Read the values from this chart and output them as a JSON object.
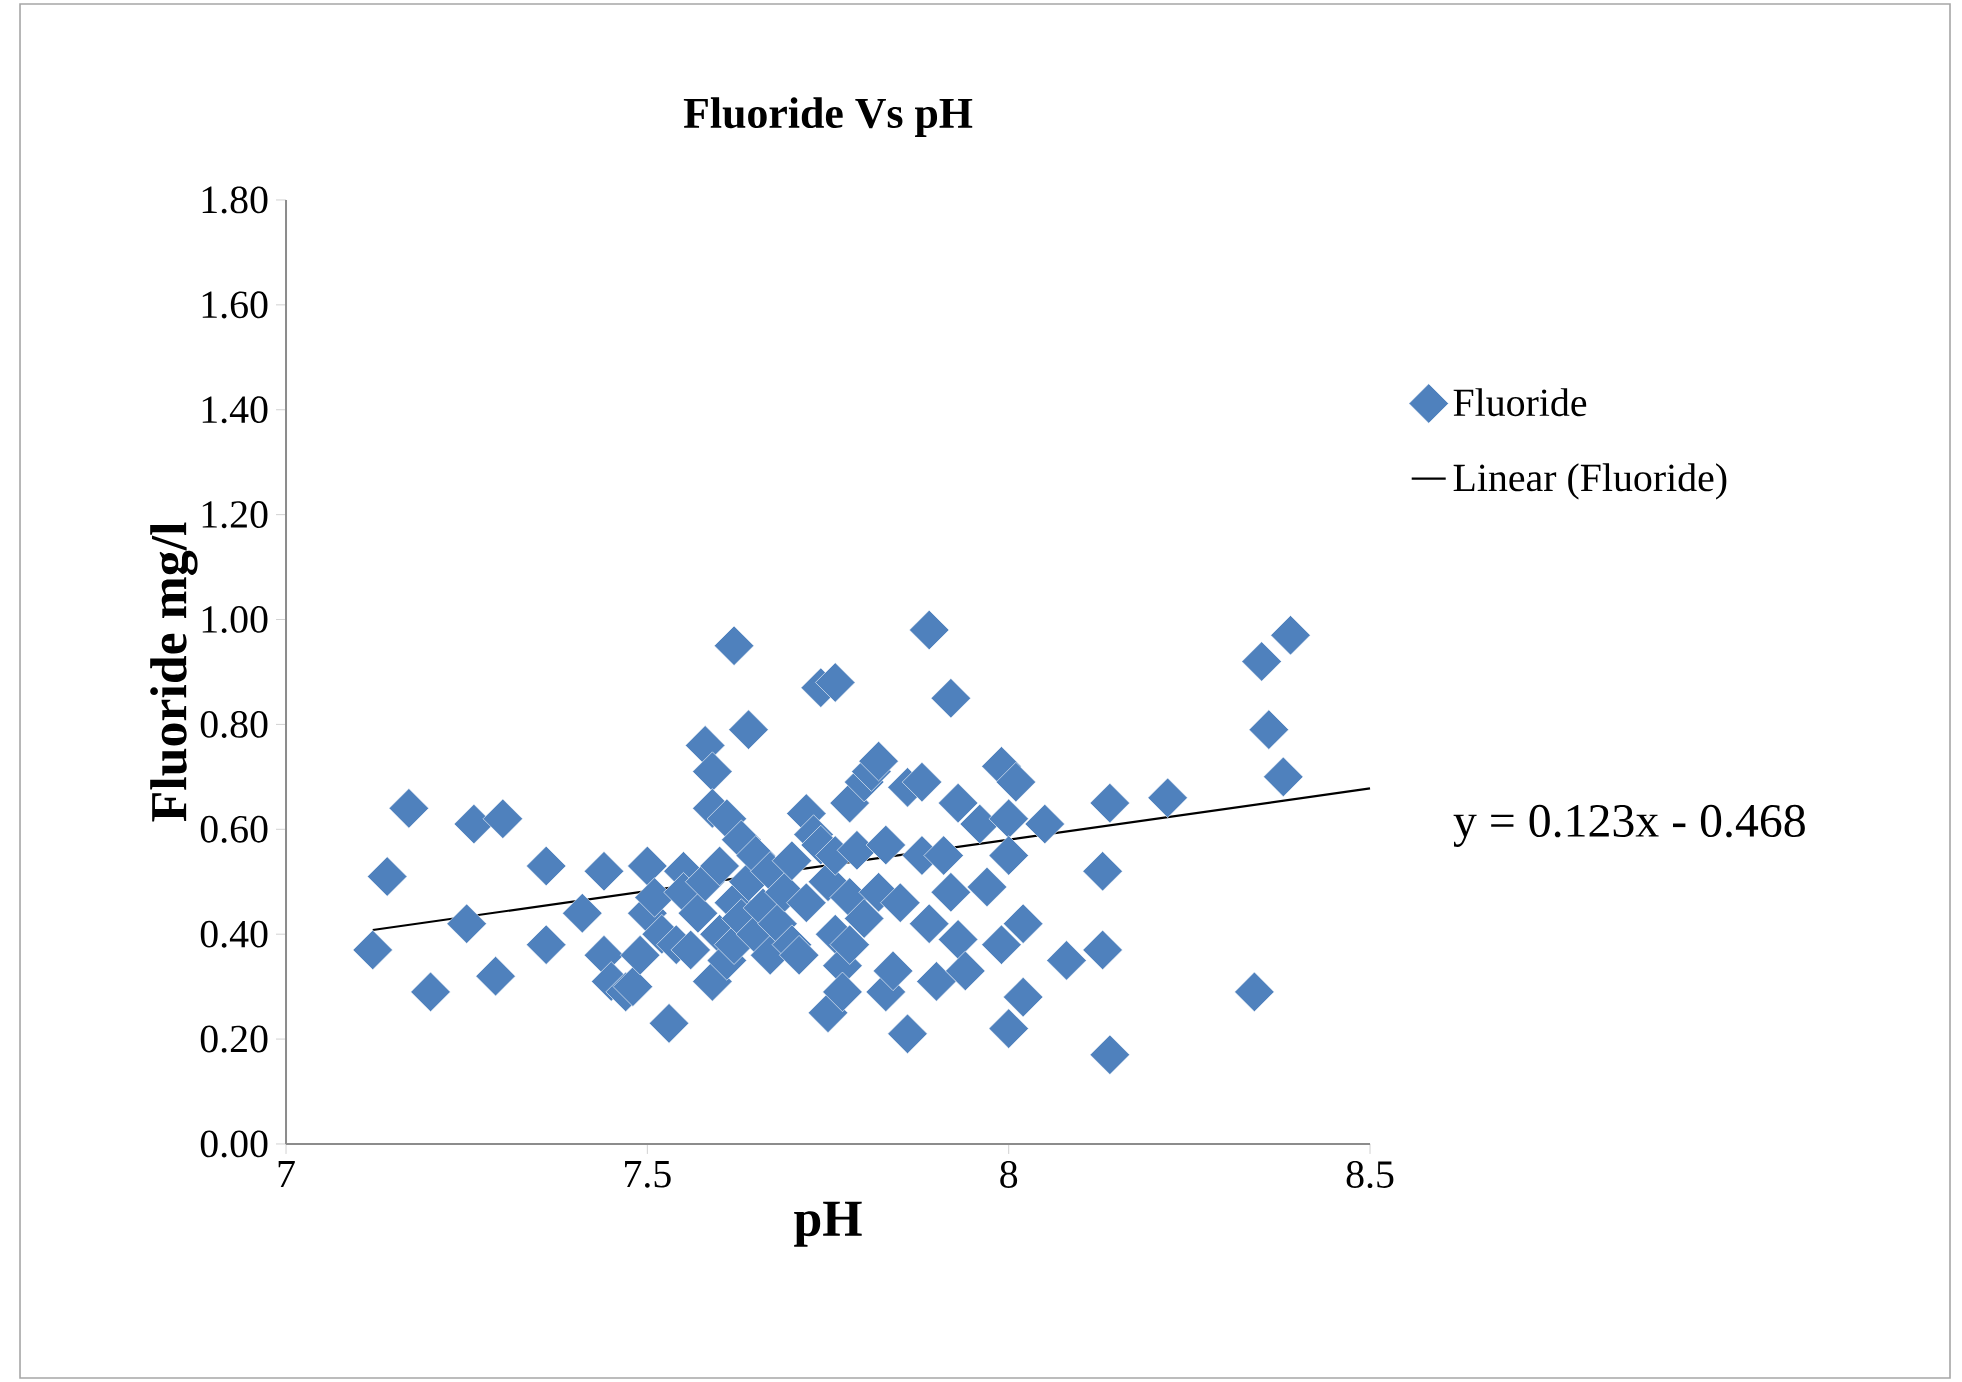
{
  "chart_data": {
    "type": "scatter",
    "title": "Fluoride Vs pH",
    "xlabel": "pH",
    "ylabel": "Fluoride mg/l",
    "xlim": [
      7,
      8.5
    ],
    "ylim": [
      0,
      1.8
    ],
    "xticks": [
      7,
      7.5,
      8,
      8.5
    ],
    "yticks": [
      {
        "value": 0,
        "label": "0.00"
      },
      {
        "value": 0.2,
        "label": "0.20"
      },
      {
        "value": 0.4,
        "label": "0.40"
      },
      {
        "value": 0.6,
        "label": "0.60"
      },
      {
        "value": 0.8,
        "label": "0.80"
      },
      {
        "value": 1.0,
        "label": "1.00"
      },
      {
        "value": 1.2,
        "label": "1.20"
      },
      {
        "value": 1.4,
        "label": "1.40"
      },
      {
        "value": 1.6,
        "label": "1.60"
      },
      {
        "value": 1.8,
        "label": "1.80"
      }
    ],
    "grid": false,
    "legend": "right",
    "annotations": [
      "y = 0.123x - 0.468"
    ],
    "series": [
      {
        "name": "Fluoride",
        "type": "scatter",
        "color": "#4f81bd",
        "marker": "diamond",
        "x": [
          7.12,
          7.14,
          7.17,
          7.2,
          7.25,
          7.26,
          7.29,
          7.3,
          7.36,
          7.36,
          7.41,
          7.44,
          7.44,
          7.45,
          7.47,
          7.48,
          7.49,
          7.5,
          7.5,
          7.51,
          7.52,
          7.53,
          7.54,
          7.55,
          7.55,
          7.56,
          7.57,
          7.58,
          7.58,
          7.59,
          7.59,
          7.59,
          7.6,
          7.6,
          7.61,
          7.61,
          7.62,
          7.62,
          7.62,
          7.63,
          7.63,
          7.64,
          7.64,
          7.65,
          7.65,
          7.66,
          7.67,
          7.67,
          7.68,
          7.69,
          7.7,
          7.7,
          7.71,
          7.72,
          7.72,
          7.73,
          7.74,
          7.74,
          7.75,
          7.75,
          7.76,
          7.76,
          7.76,
          7.77,
          7.77,
          7.78,
          7.78,
          7.78,
          7.79,
          7.8,
          7.8,
          7.81,
          7.82,
          7.82,
          7.83,
          7.83,
          7.84,
          7.85,
          7.86,
          7.86,
          7.88,
          7.88,
          7.89,
          7.89,
          7.9,
          7.91,
          7.92,
          7.92,
          7.93,
          7.93,
          7.94,
          7.96,
          7.97,
          7.99,
          7.99,
          8.0,
          8.0,
          8.0,
          8.01,
          8.02,
          8.02,
          8.05,
          8.08,
          8.13,
          8.13,
          8.14,
          8.14,
          8.22,
          8.34,
          8.35,
          8.36,
          8.38,
          8.39
        ],
        "values": [
          0.37,
          0.51,
          0.64,
          0.29,
          0.42,
          0.61,
          0.32,
          0.62,
          0.53,
          0.38,
          0.44,
          0.52,
          0.36,
          0.31,
          0.29,
          0.3,
          0.36,
          0.53,
          0.44,
          0.47,
          0.4,
          0.23,
          0.38,
          0.52,
          0.48,
          0.37,
          0.44,
          0.76,
          0.5,
          0.71,
          0.64,
          0.31,
          0.4,
          0.53,
          0.62,
          0.35,
          0.95,
          0.46,
          0.38,
          0.58,
          0.43,
          0.79,
          0.5,
          0.4,
          0.55,
          0.45,
          0.36,
          0.52,
          0.42,
          0.48,
          0.54,
          0.38,
          0.36,
          0.63,
          0.46,
          0.59,
          0.87,
          0.57,
          0.5,
          0.25,
          0.88,
          0.55,
          0.4,
          0.34,
          0.29,
          0.65,
          0.47,
          0.38,
          0.56,
          0.69,
          0.43,
          0.71,
          0.73,
          0.48,
          0.57,
          0.29,
          0.33,
          0.46,
          0.68,
          0.21,
          0.69,
          0.55,
          0.98,
          0.42,
          0.31,
          0.55,
          0.85,
          0.48,
          0.65,
          0.39,
          0.33,
          0.61,
          0.49,
          0.72,
          0.38,
          0.62,
          0.55,
          0.22,
          0.69,
          0.42,
          0.28,
          0.61,
          0.35,
          0.52,
          0.37,
          0.65,
          0.17,
          0.66,
          0.29,
          0.92,
          0.79,
          0.7,
          0.97
        ]
      },
      {
        "name": "Linear (Fluoride)",
        "type": "line",
        "color": "#000000",
        "marker": "none",
        "line_style": "solid",
        "x": [
          7.12,
          8.5
        ],
        "values": [
          0.408,
          0.678
        ]
      }
    ]
  }
}
